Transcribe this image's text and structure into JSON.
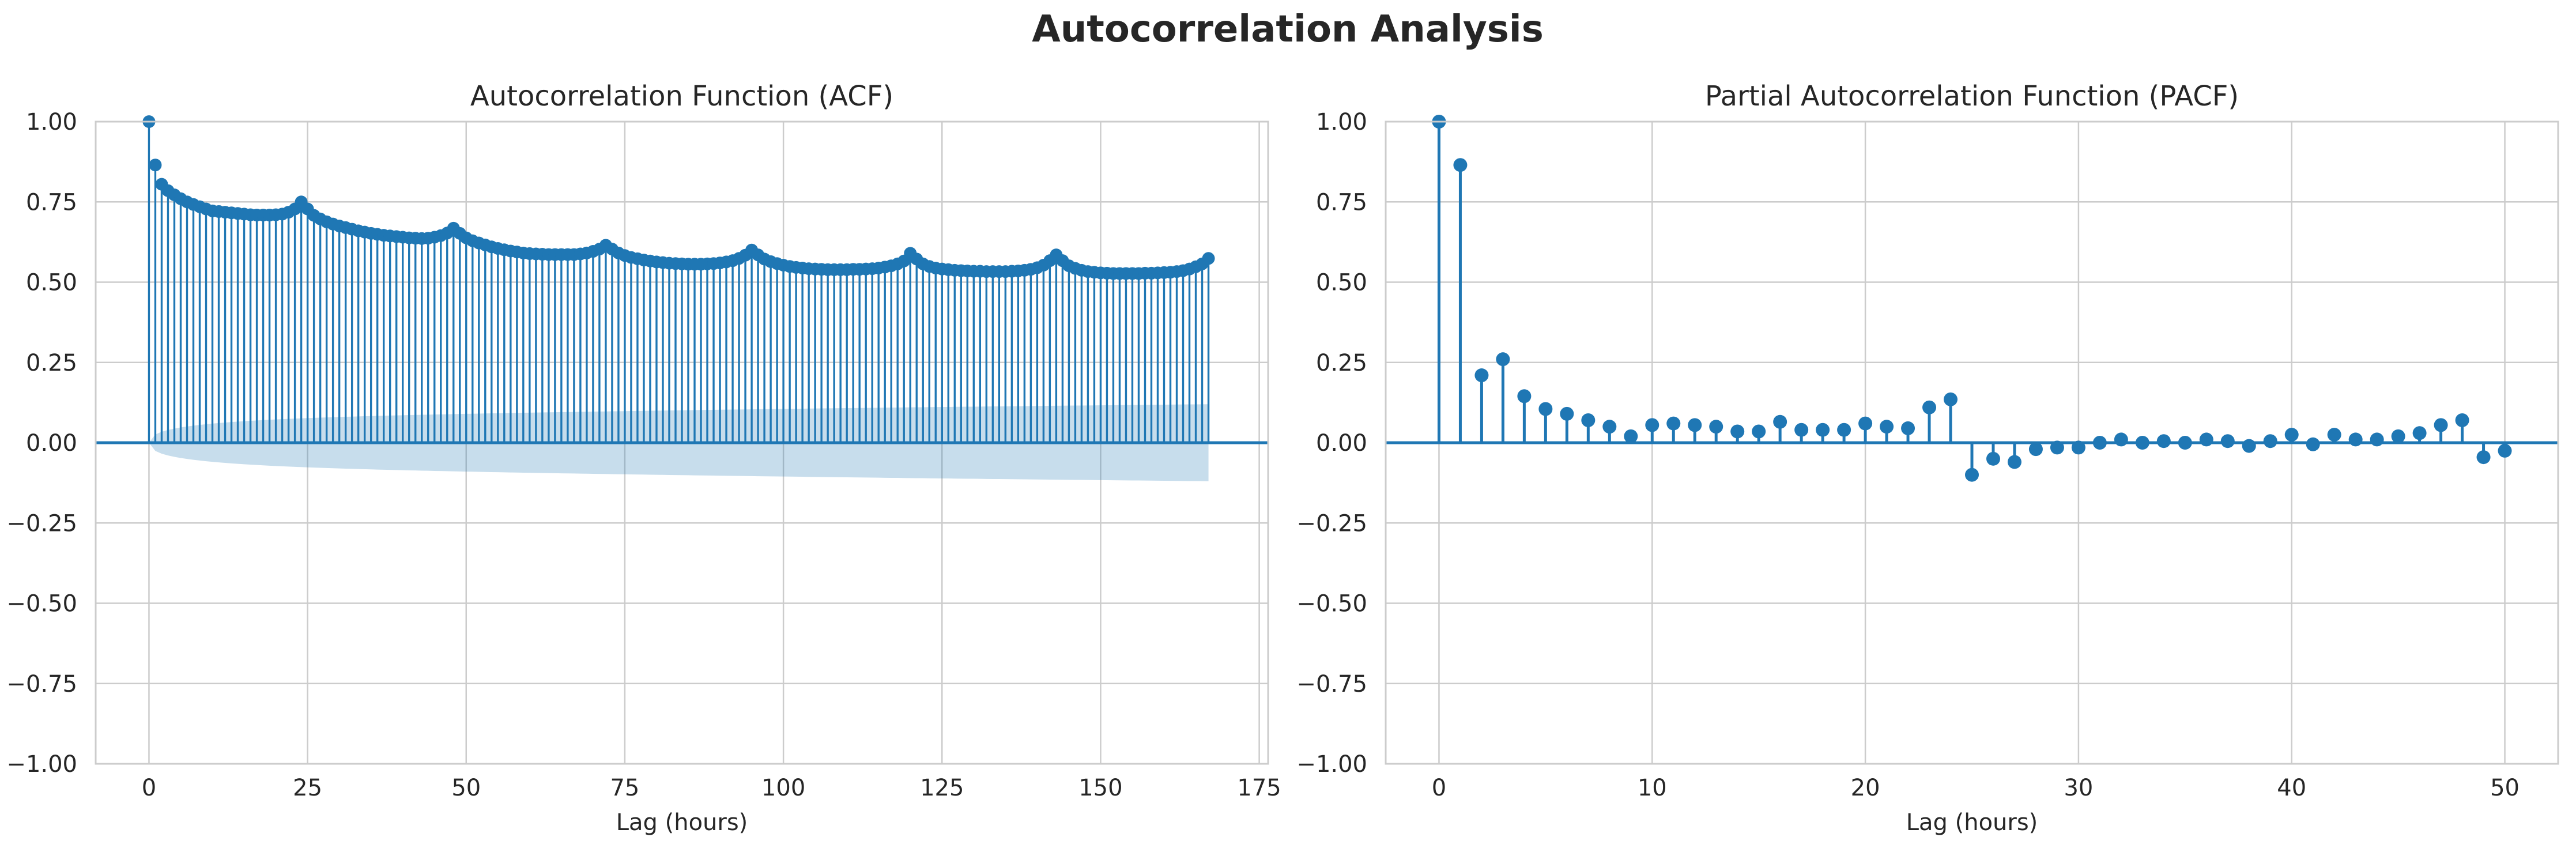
{
  "figure": {
    "title": "Autocorrelation Analysis"
  },
  "colors": {
    "series": "#1f77b4",
    "confidence_band": "#1f77b4",
    "grid": "#cccccc",
    "text": "#262626",
    "background": "#ffffff"
  },
  "chart_data": [
    {
      "type": "stem",
      "title": "Autocorrelation Function (ACF)",
      "xlabel": "Lag (hours)",
      "ylabel": "",
      "xlim": [
        -8.4,
        176.4
      ],
      "ylim": [
        -1.0,
        1.0
      ],
      "xticks": [
        0,
        25,
        50,
        75,
        100,
        125,
        150,
        175
      ],
      "yticks": [
        -1.0,
        -0.75,
        -0.5,
        -0.25,
        0.0,
        0.25,
        0.5,
        0.75,
        1.0
      ],
      "xtick_labels": [
        "0",
        "25",
        "50",
        "75",
        "100",
        "125",
        "150",
        "175"
      ],
      "ytick_labels": [
        "−1.00",
        "−0.75",
        "−0.50",
        "−0.25",
        "0.00",
        "0.25",
        "0.50",
        "0.75",
        "1.00"
      ],
      "grid": true,
      "series": [
        {
          "x_start": 0,
          "x_step": 1,
          "values": [
            1.0,
            0.865,
            0.805,
            0.785,
            0.772,
            0.76,
            0.75,
            0.742,
            0.735,
            0.728,
            0.722,
            0.72,
            0.718,
            0.716,
            0.714,
            0.712,
            0.71,
            0.709,
            0.709,
            0.709,
            0.71,
            0.712,
            0.718,
            0.728,
            0.75,
            0.728,
            0.708,
            0.697,
            0.688,
            0.681,
            0.675,
            0.67,
            0.665,
            0.66,
            0.656,
            0.652,
            0.649,
            0.646,
            0.644,
            0.642,
            0.64,
            0.638,
            0.637,
            0.636,
            0.637,
            0.64,
            0.645,
            0.653,
            0.668,
            0.652,
            0.638,
            0.629,
            0.622,
            0.616,
            0.61,
            0.605,
            0.601,
            0.597,
            0.594,
            0.591,
            0.589,
            0.588,
            0.587,
            0.586,
            0.586,
            0.586,
            0.586,
            0.586,
            0.588,
            0.591,
            0.596,
            0.603,
            0.615,
            0.603,
            0.591,
            0.583,
            0.577,
            0.573,
            0.569,
            0.566,
            0.563,
            0.561,
            0.559,
            0.558,
            0.557,
            0.556,
            0.556,
            0.556,
            0.557,
            0.558,
            0.56,
            0.563,
            0.567,
            0.574,
            0.584,
            0.6,
            0.585,
            0.572,
            0.564,
            0.558,
            0.553,
            0.549,
            0.546,
            0.544,
            0.542,
            0.541,
            0.54,
            0.539,
            0.539,
            0.539,
            0.539,
            0.54,
            0.54,
            0.541,
            0.542,
            0.544,
            0.547,
            0.551,
            0.557,
            0.566,
            0.59,
            0.572,
            0.557,
            0.549,
            0.544,
            0.541,
            0.539,
            0.537,
            0.536,
            0.535,
            0.534,
            0.534,
            0.533,
            0.533,
            0.533,
            0.533,
            0.534,
            0.535,
            0.537,
            0.54,
            0.545,
            0.553,
            0.567,
            0.585,
            0.567,
            0.551,
            0.543,
            0.537,
            0.533,
            0.531,
            0.529,
            0.528,
            0.527,
            0.527,
            0.527,
            0.527,
            0.527,
            0.528,
            0.528,
            0.529,
            0.53,
            0.531,
            0.533,
            0.536,
            0.541,
            0.548,
            0.557,
            0.574
          ]
        }
      ],
      "confidence_band": {
        "lower": [
          0.0,
          -0.0256,
          -0.0341,
          -0.0398,
          -0.0441,
          -0.0476,
          -0.0506,
          -0.0532,
          -0.0555,
          -0.0576,
          -0.0595,
          -0.0612,
          -0.0628,
          -0.0643,
          -0.0657,
          -0.067,
          -0.0682,
          -0.0694,
          -0.0705,
          -0.0715,
          -0.0725,
          -0.0734,
          -0.0743,
          -0.0751,
          -0.0759,
          -0.0767,
          -0.0774,
          -0.0781,
          -0.0788,
          -0.0795,
          -0.0801,
          -0.0807,
          -0.0813,
          -0.0819,
          -0.0825,
          -0.083,
          -0.0836,
          -0.0841,
          -0.0846,
          -0.0851,
          -0.0856,
          -0.0861,
          -0.0865,
          -0.087,
          -0.0874,
          -0.0879,
          -0.0883,
          -0.0887,
          -0.0891,
          -0.0895,
          -0.0899,
          -0.0903,
          -0.0907,
          -0.0911,
          -0.0915,
          -0.0918,
          -0.0922,
          -0.0926,
          -0.0929,
          -0.0933,
          -0.0936,
          -0.094,
          -0.0943,
          -0.0946,
          -0.095,
          -0.0953,
          -0.0956,
          -0.0959,
          -0.0963,
          -0.0966,
          -0.0969,
          -0.0972,
          -0.0975,
          -0.0978,
          -0.0981,
          -0.0984,
          -0.0987,
          -0.099,
          -0.0993,
          -0.0996,
          -0.0999,
          -0.1002,
          -0.1005,
          -0.1008,
          -0.101,
          -0.1013,
          -0.1016,
          -0.1019,
          -0.1021,
          -0.1024,
          -0.1027,
          -0.1029,
          -0.1032,
          -0.1035,
          -0.1037,
          -0.104,
          -0.1043,
          -0.1045,
          -0.1048,
          -0.105,
          -0.1053,
          -0.1055,
          -0.1058,
          -0.106,
          -0.1063,
          -0.1065,
          -0.1068,
          -0.107,
          -0.1073,
          -0.1075,
          -0.1077,
          -0.108,
          -0.1082,
          -0.1085,
          -0.1087,
          -0.1089,
          -0.1092,
          -0.1094,
          -0.1096,
          -0.1099,
          -0.1101,
          -0.1103,
          -0.1105,
          -0.1108,
          -0.111,
          -0.1112,
          -0.1114,
          -0.1117,
          -0.1119,
          -0.1121,
          -0.1123,
          -0.1125,
          -0.1128,
          -0.113,
          -0.1132,
          -0.1134,
          -0.1136,
          -0.1138,
          -0.114,
          -0.1143,
          -0.1145,
          -0.1147,
          -0.1149,
          -0.1151,
          -0.1153,
          -0.1155,
          -0.1157,
          -0.1159,
          -0.1161,
          -0.1163,
          -0.1165,
          -0.1167,
          -0.1169,
          -0.1171,
          -0.1173,
          -0.1175,
          -0.1177,
          -0.1179,
          -0.1181,
          -0.1183,
          -0.1185,
          -0.1187,
          -0.1189,
          -0.1191,
          -0.1193,
          -0.1195,
          -0.1197,
          -0.1199,
          -0.12
        ],
        "upper": [
          0.0,
          0.0256,
          0.0341,
          0.0398,
          0.0441,
          0.0476,
          0.0506,
          0.0532,
          0.0555,
          0.0576,
          0.0595,
          0.0612,
          0.0628,
          0.0643,
          0.0657,
          0.067,
          0.0682,
          0.0694,
          0.0705,
          0.0715,
          0.0725,
          0.0734,
          0.0743,
          0.0751,
          0.0759,
          0.0767,
          0.0774,
          0.0781,
          0.0788,
          0.0795,
          0.0801,
          0.0807,
          0.0813,
          0.0819,
          0.0825,
          0.083,
          0.0836,
          0.0841,
          0.0846,
          0.0851,
          0.0856,
          0.0861,
          0.0865,
          0.087,
          0.0874,
          0.0879,
          0.0883,
          0.0887,
          0.0891,
          0.0895,
          0.0899,
          0.0903,
          0.0907,
          0.0911,
          0.0915,
          0.0918,
          0.0922,
          0.0926,
          0.0929,
          0.0933,
          0.0936,
          0.094,
          0.0943,
          0.0946,
          0.095,
          0.0953,
          0.0956,
          0.0959,
          0.0963,
          0.0966,
          0.0969,
          0.0972,
          0.0975,
          0.0978,
          0.0981,
          0.0984,
          0.0987,
          0.099,
          0.0993,
          0.0996,
          0.0999,
          0.1002,
          0.1005,
          0.1008,
          0.101,
          0.1013,
          0.1016,
          0.1019,
          0.1021,
          0.1024,
          0.1027,
          0.1029,
          0.1032,
          0.1035,
          0.1037,
          0.104,
          0.1043,
          0.1045,
          0.1048,
          0.105,
          0.1053,
          0.1055,
          0.1058,
          0.106,
          0.1063,
          0.1065,
          0.1068,
          0.107,
          0.1073,
          0.1075,
          0.1077,
          0.108,
          0.1082,
          0.1085,
          0.1087,
          0.1089,
          0.1092,
          0.1094,
          0.1096,
          0.1099,
          0.1101,
          0.1103,
          0.1105,
          0.1108,
          0.111,
          0.1112,
          0.1114,
          0.1117,
          0.1119,
          0.1121,
          0.1123,
          0.1125,
          0.1128,
          0.113,
          0.1132,
          0.1134,
          0.1136,
          0.1138,
          0.114,
          0.1143,
          0.1145,
          0.1147,
          0.1149,
          0.1151,
          0.1153,
          0.1155,
          0.1157,
          0.1159,
          0.1161,
          0.1163,
          0.1165,
          0.1167,
          0.1169,
          0.1171,
          0.1173,
          0.1175,
          0.1177,
          0.1179,
          0.1181,
          0.1183,
          0.1185,
          0.1187,
          0.1189,
          0.1191,
          0.1193,
          0.1195,
          0.1197,
          0.1199,
          0.12
        ]
      }
    },
    {
      "type": "stem",
      "title": "Partial Autocorrelation Function (PACF)",
      "xlabel": "Lag (hours)",
      "ylabel": "",
      "xlim": [
        -2.5,
        52.5
      ],
      "ylim": [
        -1.0,
        1.0
      ],
      "xticks": [
        0,
        10,
        20,
        30,
        40,
        50
      ],
      "yticks": [
        -1.0,
        -0.75,
        -0.5,
        -0.25,
        0.0,
        0.25,
        0.5,
        0.75,
        1.0
      ],
      "xtick_labels": [
        "0",
        "10",
        "20",
        "30",
        "40",
        "50"
      ],
      "ytick_labels": [
        "−1.00",
        "−0.75",
        "−0.50",
        "−0.25",
        "0.00",
        "0.25",
        "0.50",
        "0.75",
        "1.00"
      ],
      "grid": true,
      "series": [
        {
          "x_start": 0,
          "x_step": 1,
          "values": [
            1.0,
            0.865,
            0.21,
            0.26,
            0.145,
            0.105,
            0.09,
            0.07,
            0.05,
            0.02,
            0.055,
            0.06,
            0.055,
            0.05,
            0.035,
            0.035,
            0.065,
            0.04,
            0.04,
            0.04,
            0.06,
            0.05,
            0.045,
            0.11,
            0.135,
            -0.1,
            -0.05,
            -0.06,
            -0.02,
            -0.015,
            -0.015,
            0.0,
            0.01,
            0.0,
            0.005,
            0.0,
            0.01,
            0.005,
            -0.01,
            0.005,
            0.025,
            -0.005,
            0.025,
            0.01,
            0.01,
            0.02,
            0.03,
            0.055,
            0.07,
            -0.045,
            -0.025
          ]
        }
      ]
    }
  ]
}
